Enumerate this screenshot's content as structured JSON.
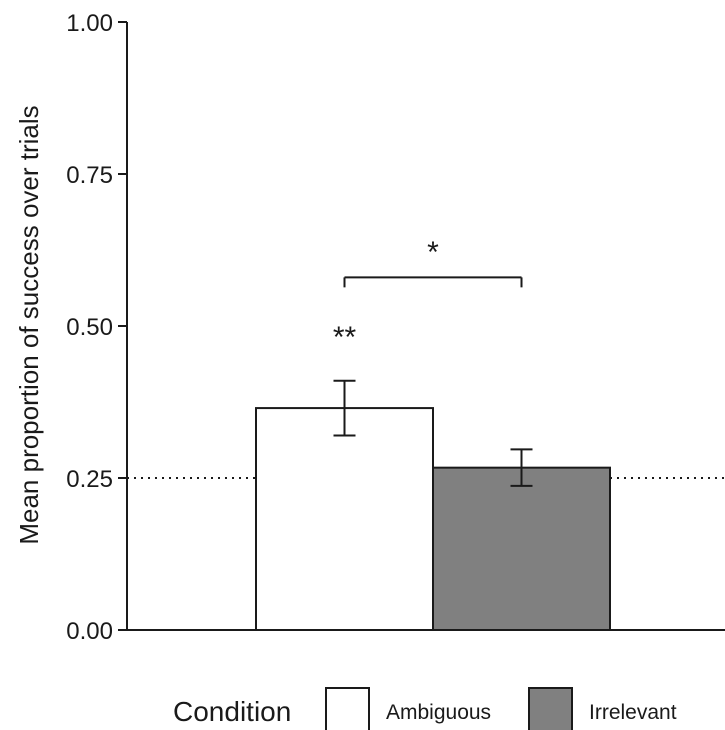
{
  "chart_data": {
    "type": "bar",
    "categories": [
      "Ambiguous",
      "Irrelevant"
    ],
    "values": [
      0.365,
      0.267
    ],
    "error_low": [
      0.32,
      0.237
    ],
    "error_high": [
      0.41,
      0.297
    ],
    "colors": [
      "#ffffff",
      "#808080"
    ],
    "ylabel": "Mean proportion of success over trials",
    "ylim": [
      0,
      1
    ],
    "yticks": [
      0.0,
      0.25,
      0.5,
      0.75,
      1.0
    ],
    "ytick_labels": [
      "0.00",
      "0.25",
      "0.50",
      "0.75",
      "1.00"
    ],
    "reference_line": {
      "y": 0.25,
      "style": "dotted"
    },
    "annotations": {
      "bar_marker": {
        "category": "Ambiguous",
        "text": "**"
      },
      "comparison": {
        "from": "Ambiguous",
        "to": "Irrelevant",
        "text": "*",
        "y": 0.58
      }
    },
    "legend": {
      "title": "Condition",
      "position": "bottom",
      "entries": [
        {
          "label": "Ambiguous",
          "color": "#ffffff"
        },
        {
          "label": "Irrelevant",
          "color": "#808080"
        }
      ]
    }
  }
}
